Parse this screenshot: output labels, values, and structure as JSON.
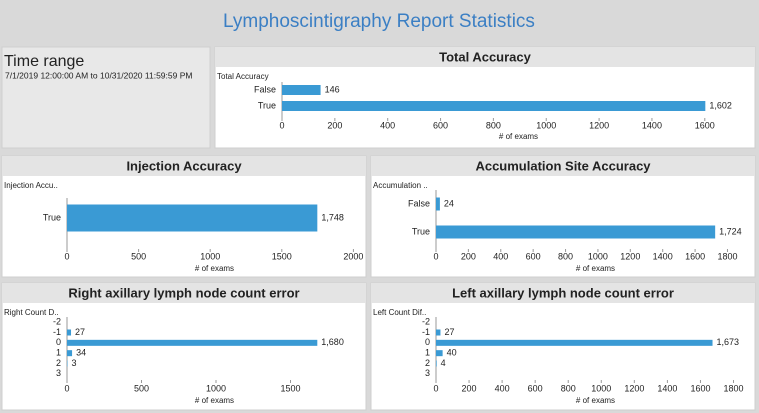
{
  "title": "Lymphoscintigraphy Report Statistics",
  "time_range": {
    "label": "Time range",
    "value": "7/1/2019 12:00:00 AM to 10/31/2020 11:59:59 PM"
  },
  "chart_data": [
    {
      "type": "bar",
      "title": "Total Accuracy",
      "field_label": "Total Accuracy",
      "xlabel": "# of exams",
      "color": "#3a9ad4",
      "categories": [
        "False",
        "True"
      ],
      "values": [
        146,
        1602
      ],
      "value_labels": [
        "146",
        "1,602"
      ],
      "xlim": [
        0,
        1790
      ],
      "xticks": [
        0,
        200,
        400,
        600,
        800,
        1000,
        1200,
        1400,
        1600
      ]
    },
    {
      "type": "bar",
      "title": "Injection Accuracy",
      "field_label": "Injection Accu..",
      "xlabel": "# of exams",
      "color": "#3a9ad4",
      "categories": [
        "True"
      ],
      "values": [
        1748
      ],
      "value_labels": [
        "1,748"
      ],
      "xlim": [
        0,
        2060
      ],
      "xticks": [
        0,
        500,
        1000,
        1500,
        2000
      ]
    },
    {
      "type": "bar",
      "title": "Accumulation Site Accuracy",
      "field_label": "Accumulation ..",
      "xlabel": "# of exams",
      "color": "#3a9ad4",
      "categories": [
        "False",
        "True"
      ],
      "values": [
        24,
        1724
      ],
      "value_labels": [
        "24",
        "1,724"
      ],
      "xlim": [
        0,
        1970
      ],
      "xticks": [
        0,
        200,
        400,
        600,
        800,
        1000,
        1200,
        1400,
        1600,
        1800
      ]
    },
    {
      "type": "bar",
      "title": "Right axillary lymph node count error",
      "field_label": "Right Count D..",
      "xlabel": "# of exams",
      "color": "#3a9ad4",
      "categories": [
        "-2",
        "-1",
        "0",
        "1",
        "2",
        "3"
      ],
      "values": [
        null,
        27,
        1680,
        34,
        3,
        null
      ],
      "value_labels": [
        null,
        "27",
        "1,680",
        "34",
        "3",
        null
      ],
      "xlim": [
        0,
        1980
      ],
      "xticks": [
        0,
        500,
        1000,
        1500
      ]
    },
    {
      "type": "bar",
      "title": "Left axillary lymph node count error",
      "field_label": "Left Count Dif..",
      "xlabel": "# of exams",
      "color": "#3a9ad4",
      "categories": [
        "-2",
        "-1",
        "0",
        "1",
        "2",
        "3"
      ],
      "values": [
        null,
        27,
        1673,
        40,
        4,
        null
      ],
      "value_labels": [
        null,
        "27",
        "1,673",
        "40",
        "4",
        null
      ],
      "xlim": [
        0,
        1930
      ],
      "xticks": [
        0,
        200,
        400,
        600,
        800,
        1000,
        1200,
        1400,
        1600,
        1800
      ]
    }
  ]
}
